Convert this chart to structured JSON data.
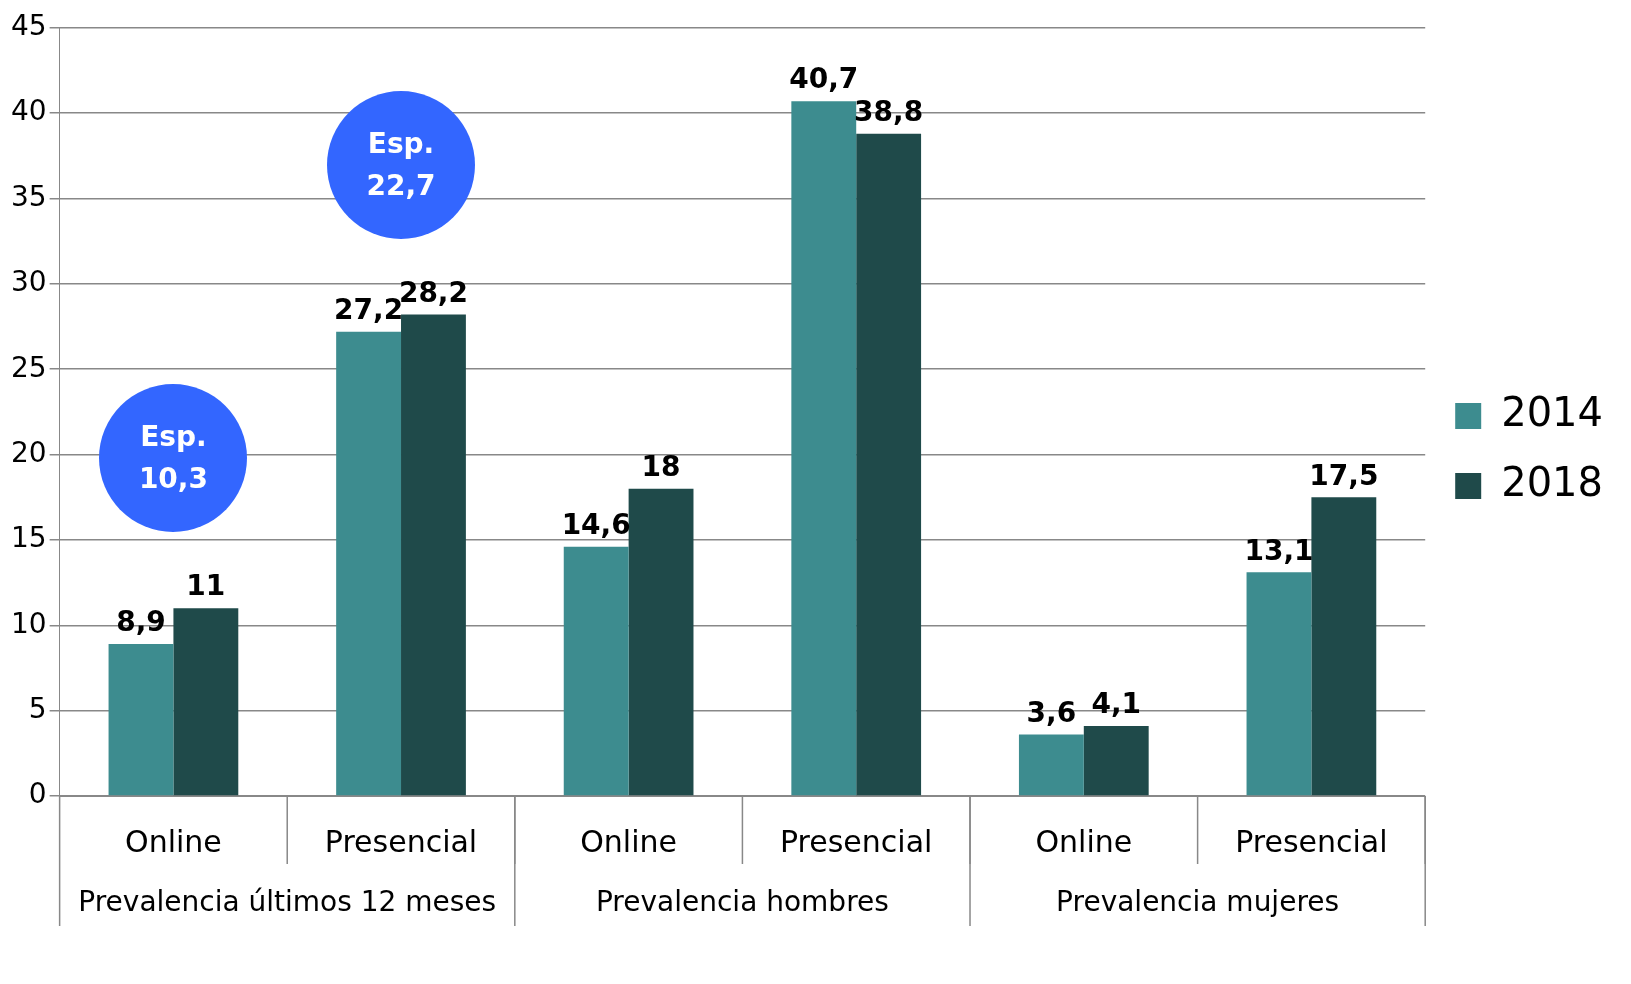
{
  "chart_data": {
    "type": "bar",
    "categories": [
      "Online",
      "Presencial",
      "Online",
      "Presencial",
      "Online",
      "Presencial"
    ],
    "series": [
      {
        "name": "2014",
        "color": "#3d8c8f",
        "values": [
          8.9,
          27.2,
          14.6,
          40.7,
          3.6,
          13.1
        ],
        "value_labels": [
          "8,9",
          "27,2",
          "14,6",
          "40,7",
          "3,6",
          "13,1"
        ]
      },
      {
        "name": "2018",
        "color": "#1f4a4a",
        "values": [
          11,
          28.2,
          18,
          38.8,
          4.1,
          17.5
        ],
        "value_labels": [
          "11",
          "28,2",
          "18",
          "38,8",
          "4,1",
          "17,5"
        ]
      }
    ],
    "ylim": [
      0,
      45
    ],
    "yticks": [
      0,
      5,
      10,
      15,
      20,
      25,
      30,
      35,
      40,
      45
    ],
    "grid": "y",
    "legend": "right",
    "annotations": [
      "Prevalencia últimos 12 meses",
      "Prevalencia hombres",
      "Prevalencia mujeres",
      "Esp. 10,3",
      "Esp. 22,7"
    ]
  }
}
